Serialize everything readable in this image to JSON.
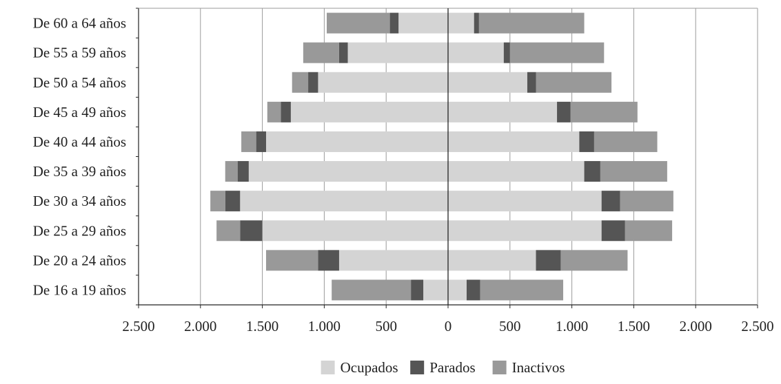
{
  "chart_data": {
    "type": "bar",
    "orientation": "horizontal",
    "layout": "population-pyramid",
    "categories": [
      "De 16 a 19 años",
      "De 20 a 24 años",
      "De 25 a 29 años",
      "De 30 a 34 años",
      "De 35 a 39 años",
      "De 40 a 44 años",
      "De 45 a 49 años",
      "De 50 a 54 años",
      "De 55 a 59 años",
      "De 60 a 64 años"
    ],
    "series": [
      {
        "name": "Ocupados",
        "color": "#d4d4d4",
        "left": [
          200,
          880,
          1500,
          1680,
          1610,
          1470,
          1270,
          1050,
          810,
          400
        ],
        "right": [
          150,
          710,
          1240,
          1240,
          1100,
          1060,
          880,
          640,
          450,
          210
        ]
      },
      {
        "name": "Parados",
        "color": "#555555",
        "left": [
          100,
          170,
          180,
          120,
          90,
          80,
          80,
          80,
          70,
          70
        ],
        "right": [
          110,
          200,
          190,
          150,
          130,
          120,
          110,
          70,
          50,
          40
        ]
      },
      {
        "name": "Inactivos",
        "color": "#999999",
        "left": [
          640,
          420,
          190,
          120,
          100,
          120,
          110,
          130,
          290,
          510
        ],
        "right": [
          670,
          540,
          380,
          430,
          540,
          510,
          540,
          610,
          760,
          850
        ]
      }
    ],
    "x_ticks": [
      "2.500",
      "2.000",
      "1.500",
      "1.000",
      "500",
      "0",
      "500",
      "1.000",
      "1.500",
      "2.000",
      "2.500"
    ],
    "xlim": [
      -2500,
      2500
    ],
    "grid": "vertical",
    "legend": "bottom-center"
  }
}
